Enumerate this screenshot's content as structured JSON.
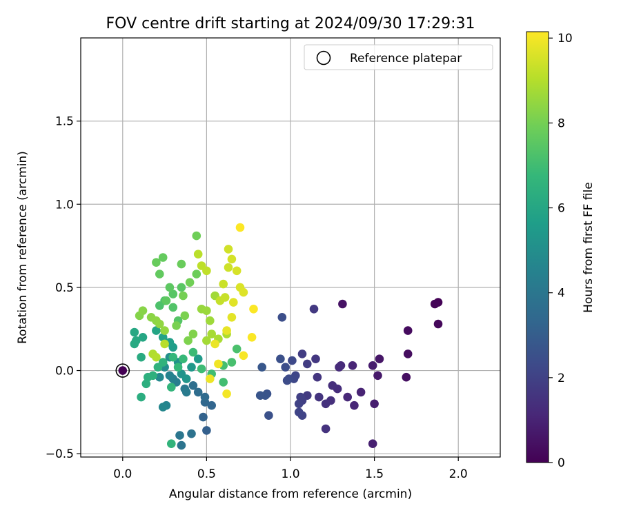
{
  "chart_data": {
    "type": "scatter",
    "title": "FOV centre drift starting at 2024/09/30 17:29:31",
    "xlabel": "Angular distance from reference (arcmin)",
    "ylabel": "Rotation from reference (arcmin)",
    "xlim": [
      -0.25,
      2.25
    ],
    "ylim": [
      -0.52,
      2.0
    ],
    "xticks": [
      0.0,
      0.5,
      1.0,
      1.5,
      2.0
    ],
    "xtick_labels": [
      "0.0",
      "0.5",
      "1.0",
      "1.5",
      "2.0"
    ],
    "yticks": [
      -0.5,
      0.0,
      0.5,
      1.0,
      1.5
    ],
    "ytick_labels": [
      "−0.5",
      "0.0",
      "0.5",
      "1.0",
      "1.5"
    ],
    "grid": true,
    "legend": {
      "position": "upper-right",
      "entries": [
        "Reference platepar"
      ]
    },
    "reference_point": {
      "x": 0.0,
      "y": 0.0,
      "label": "Reference platepar"
    },
    "colorbar": {
      "label": "Hours from first FF file",
      "colormap": "viridis",
      "range": [
        0,
        10.15
      ],
      "ticks": [
        0,
        2,
        4,
        6,
        8,
        10
      ],
      "tick_labels": [
        "0",
        "2",
        "4",
        "6",
        "8",
        "10"
      ]
    },
    "colormap_stops": [
      "#440154",
      "#482878",
      "#3e4989",
      "#31688e",
      "#26828e",
      "#1f9e89",
      "#35b779",
      "#6ece58",
      "#b5de2b",
      "#fde725"
    ],
    "series": [
      {
        "points": [
          [
            1.88,
            0.41,
            0.05
          ],
          [
            1.86,
            0.4,
            0.1
          ],
          [
            1.88,
            0.28,
            0.2
          ],
          [
            1.7,
            0.24,
            0.3
          ],
          [
            1.7,
            0.1,
            0.35
          ],
          [
            1.69,
            -0.04,
            0.4
          ],
          [
            1.31,
            0.4,
            0.5
          ],
          [
            1.53,
            0.07,
            0.6
          ],
          [
            1.52,
            -0.03,
            0.7
          ],
          [
            1.49,
            0.03,
            0.8
          ],
          [
            1.5,
            -0.2,
            0.85
          ],
          [
            1.49,
            -0.44,
            0.9
          ],
          [
            1.42,
            -0.13,
            1.0
          ],
          [
            1.37,
            0.03,
            1.05
          ],
          [
            1.38,
            -0.21,
            1.1
          ],
          [
            1.34,
            -0.16,
            1.15
          ],
          [
            1.3,
            0.03,
            1.2
          ],
          [
            1.29,
            0.02,
            1.25
          ],
          [
            1.28,
            -0.11,
            1.3
          ],
          [
            1.25,
            -0.09,
            1.35
          ],
          [
            1.24,
            -0.18,
            1.4
          ],
          [
            1.21,
            -0.2,
            1.45
          ],
          [
            1.21,
            -0.35,
            1.5
          ],
          [
            1.17,
            -0.16,
            1.55
          ],
          [
            1.16,
            -0.04,
            1.6
          ],
          [
            1.15,
            0.07,
            1.65
          ],
          [
            1.14,
            0.37,
            1.7
          ],
          [
            1.1,
            -0.15,
            1.75
          ],
          [
            1.1,
            0.04,
            1.8
          ],
          [
            1.07,
            0.1,
            1.85
          ],
          [
            1.07,
            -0.18,
            1.9
          ],
          [
            1.06,
            -0.16,
            1.95
          ],
          [
            1.05,
            -0.2,
            2.0
          ],
          [
            1.07,
            -0.27,
            2.05
          ],
          [
            1.05,
            -0.25,
            2.1
          ],
          [
            1.03,
            -0.03,
            2.15
          ],
          [
            1.02,
            -0.05,
            2.2
          ],
          [
            1.01,
            0.06,
            2.25
          ],
          [
            0.99,
            -0.05,
            2.3
          ],
          [
            0.98,
            -0.06,
            2.35
          ],
          [
            0.97,
            0.02,
            2.4
          ],
          [
            0.95,
            0.32,
            2.45
          ],
          [
            0.94,
            0.07,
            2.5
          ],
          [
            0.87,
            -0.27,
            2.55
          ],
          [
            0.86,
            -0.14,
            2.6
          ],
          [
            0.85,
            -0.15,
            2.65
          ],
          [
            0.82,
            -0.15,
            2.7
          ],
          [
            0.83,
            0.02,
            2.75
          ],
          [
            0.5,
            -0.36,
            3.1
          ],
          [
            0.48,
            -0.28,
            3.2
          ],
          [
            0.53,
            -0.21,
            3.3
          ],
          [
            0.49,
            -0.19,
            3.4
          ],
          [
            0.49,
            -0.16,
            3.5
          ],
          [
            0.45,
            -0.13,
            3.6
          ],
          [
            0.42,
            -0.09,
            3.7
          ],
          [
            0.41,
            -0.38,
            3.8
          ],
          [
            0.35,
            -0.45,
            3.9
          ],
          [
            0.34,
            -0.39,
            4.0
          ],
          [
            0.37,
            -0.11,
            4.1
          ],
          [
            0.38,
            -0.13,
            4.2
          ],
          [
            0.32,
            -0.07,
            4.3
          ],
          [
            0.3,
            -0.05,
            4.4
          ],
          [
            0.28,
            -0.03,
            4.5
          ],
          [
            0.26,
            -0.21,
            4.6
          ],
          [
            0.24,
            -0.22,
            4.7
          ],
          [
            0.22,
            -0.04,
            4.8
          ],
          [
            0.25,
            0.02,
            4.9
          ],
          [
            0.28,
            0.08,
            5.0
          ],
          [
            0.33,
            0.05,
            5.1
          ],
          [
            0.35,
            -0.02,
            5.2
          ],
          [
            0.38,
            -0.05,
            5.3
          ],
          [
            0.41,
            0.02,
            5.4
          ],
          [
            0.45,
            0.07,
            5.5
          ],
          [
            0.3,
            0.14,
            5.6
          ],
          [
            0.28,
            0.17,
            5.7
          ],
          [
            0.24,
            0.2,
            5.8
          ],
          [
            0.2,
            0.24,
            5.9
          ],
          [
            0.12,
            0.2,
            6.0
          ],
          [
            0.07,
            0.23,
            6.05
          ],
          [
            0.08,
            0.18,
            6.1
          ],
          [
            0.07,
            0.16,
            6.15
          ],
          [
            0.11,
            0.08,
            6.2
          ],
          [
            0.11,
            -0.16,
            6.3
          ],
          [
            0.14,
            -0.08,
            6.35
          ],
          [
            0.15,
            -0.04,
            6.4
          ],
          [
            0.18,
            -0.03,
            6.45
          ],
          [
            0.21,
            0.02,
            6.5
          ],
          [
            0.24,
            0.05,
            6.55
          ],
          [
            0.29,
            -0.44,
            6.6
          ],
          [
            0.29,
            -0.1,
            6.65
          ],
          [
            0.3,
            0.08,
            6.7
          ],
          [
            0.33,
            0.02,
            6.75
          ],
          [
            0.36,
            0.07,
            6.8
          ],
          [
            0.42,
            0.11,
            6.9
          ],
          [
            0.47,
            0.01,
            6.95
          ],
          [
            0.53,
            -0.02,
            7.0
          ],
          [
            0.6,
            -0.07,
            7.05
          ],
          [
            0.6,
            0.03,
            7.1
          ],
          [
            0.65,
            0.05,
            7.15
          ],
          [
            0.68,
            0.13,
            7.2
          ],
          [
            0.22,
            0.39,
            7.25
          ],
          [
            0.25,
            0.42,
            7.3
          ],
          [
            0.3,
            0.38,
            7.35
          ],
          [
            0.33,
            0.3,
            7.4
          ],
          [
            0.3,
            0.46,
            7.45
          ],
          [
            0.35,
            0.5,
            7.5
          ],
          [
            0.28,
            0.5,
            7.55
          ],
          [
            0.26,
            0.42,
            7.6
          ],
          [
            0.22,
            0.58,
            7.65
          ],
          [
            0.24,
            0.68,
            7.7
          ],
          [
            0.2,
            0.65,
            7.75
          ],
          [
            0.35,
            0.64,
            7.8
          ],
          [
            0.44,
            0.58,
            7.85
          ],
          [
            0.44,
            0.81,
            7.9
          ],
          [
            0.4,
            0.53,
            7.95
          ],
          [
            0.36,
            0.45,
            8.0
          ],
          [
            0.32,
            0.27,
            8.05
          ],
          [
            0.37,
            0.33,
            8.1
          ],
          [
            0.39,
            0.18,
            8.15
          ],
          [
            0.42,
            0.22,
            8.2
          ],
          [
            0.1,
            0.33,
            8.25
          ],
          [
            0.12,
            0.36,
            8.3
          ],
          [
            0.17,
            0.32,
            8.35
          ],
          [
            0.2,
            0.3,
            8.4
          ],
          [
            0.22,
            0.28,
            8.45
          ],
          [
            0.25,
            0.24,
            8.5
          ],
          [
            0.47,
            0.37,
            8.55
          ],
          [
            0.5,
            0.36,
            8.6
          ],
          [
            0.52,
            0.3,
            8.65
          ],
          [
            0.55,
            0.45,
            8.7
          ],
          [
            0.5,
            0.18,
            8.75
          ],
          [
            0.53,
            0.22,
            8.8
          ],
          [
            0.57,
            0.19,
            8.85
          ],
          [
            0.62,
            0.22,
            8.9
          ],
          [
            0.18,
            0.1,
            8.95
          ],
          [
            0.2,
            0.08,
            9.0
          ],
          [
            0.25,
            0.16,
            9.05
          ],
          [
            0.45,
            0.7,
            9.1
          ],
          [
            0.47,
            0.63,
            9.15
          ],
          [
            0.5,
            0.6,
            9.2
          ],
          [
            0.58,
            0.42,
            9.25
          ],
          [
            0.61,
            0.44,
            9.3
          ],
          [
            0.6,
            0.52,
            9.35
          ],
          [
            0.63,
            0.62,
            9.4
          ],
          [
            0.63,
            0.73,
            9.45
          ],
          [
            0.65,
            0.67,
            9.5
          ],
          [
            0.68,
            0.6,
            9.55
          ],
          [
            0.7,
            0.5,
            9.6
          ],
          [
            0.72,
            0.47,
            9.65
          ],
          [
            0.66,
            0.41,
            9.7
          ],
          [
            0.65,
            0.32,
            9.75
          ],
          [
            0.62,
            0.24,
            9.8
          ],
          [
            0.55,
            0.16,
            9.85
          ],
          [
            0.52,
            -0.05,
            9.9
          ],
          [
            0.57,
            0.04,
            9.95
          ],
          [
            0.62,
            -0.14,
            10.0
          ],
          [
            0.72,
            0.09,
            10.05
          ],
          [
            0.77,
            0.2,
            10.1
          ],
          [
            0.78,
            0.37,
            10.12
          ],
          [
            0.7,
            0.86,
            10.14
          ]
        ]
      }
    ]
  }
}
